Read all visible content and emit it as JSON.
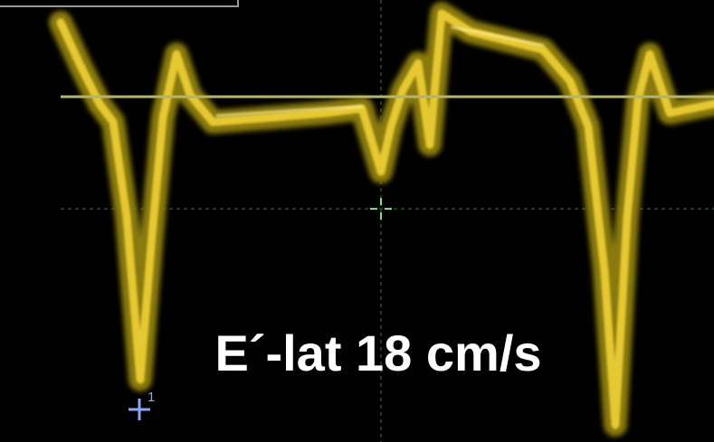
{
  "annotation": {
    "text": "E´-lat 18 cm/s"
  },
  "markers": [
    {
      "label": "1"
    }
  ]
}
